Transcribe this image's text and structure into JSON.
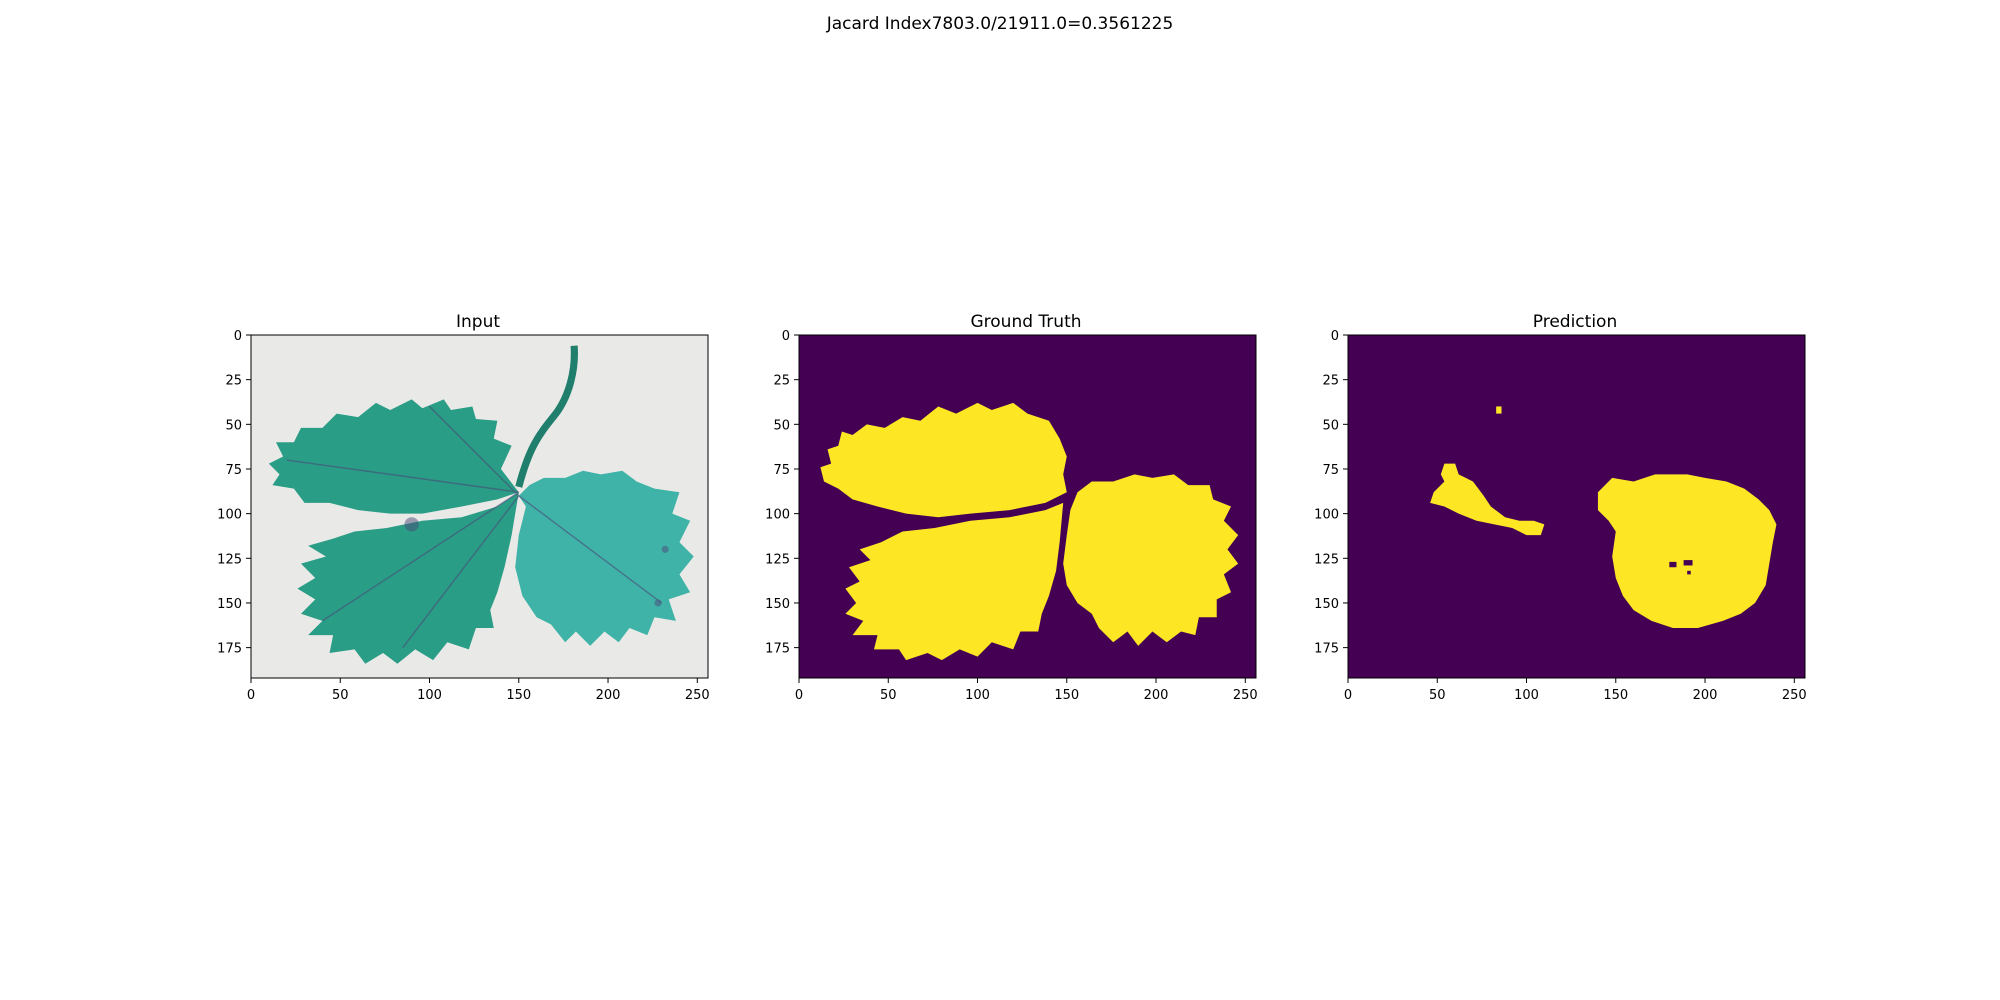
{
  "figure": {
    "suptitle": "Jacard Index7803.0/21911.0=0.3561225"
  },
  "colors": {
    "background": "#440154",
    "mask": "#fde725",
    "input_paper": "#e9e9e7",
    "input_leaf": "#2a9d86",
    "input_leaf_dark": "#1f7e6c",
    "input_leaf_light": "#3fb3a7",
    "input_vein": "#4a4a7a"
  },
  "chart_data": [
    {
      "type": "image",
      "title": "Input",
      "xlim": [
        0,
        256
      ],
      "ylim": [
        192,
        0
      ],
      "xticks": [
        0,
        50,
        100,
        150,
        200,
        250
      ],
      "yticks": [
        0,
        25,
        50,
        75,
        100,
        125,
        150,
        175
      ]
    },
    {
      "type": "heatmap",
      "title": "Ground Truth",
      "xlim": [
        0,
        256
      ],
      "ylim": [
        192,
        0
      ],
      "xticks": [
        0,
        50,
        100,
        150,
        200,
        250
      ],
      "yticks": [
        0,
        25,
        50,
        75,
        100,
        125,
        150,
        175
      ]
    },
    {
      "type": "heatmap",
      "title": "Prediction",
      "xlim": [
        0,
        256
      ],
      "ylim": [
        192,
        0
      ],
      "xticks": [
        0,
        50,
        100,
        150,
        200,
        250
      ],
      "yticks": [
        0,
        25,
        50,
        75,
        100,
        125,
        150,
        175
      ]
    }
  ]
}
